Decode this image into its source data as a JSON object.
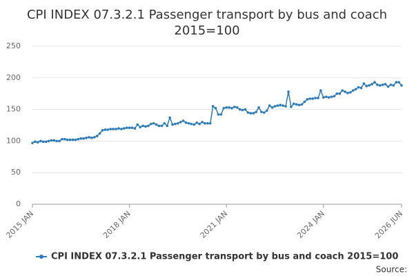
{
  "chart_data": {
    "type": "line",
    "title": "CPI INDEX 07.3.2.1 Passenger transport by bus and coach",
    "subtitle": "2015=100",
    "source": "Source:",
    "categories": [
      "2015 JAN",
      null,
      null,
      null,
      null,
      null,
      null,
      null,
      null,
      null,
      null,
      null,
      null,
      null,
      null,
      null,
      null,
      null,
      null,
      null,
      null,
      null,
      null,
      null,
      null,
      null,
      null,
      null,
      null,
      null,
      null,
      null,
      null,
      null,
      null,
      null,
      "2018 JAN",
      null,
      null,
      null,
      null,
      null,
      null,
      null,
      null,
      null,
      null,
      null,
      null,
      null,
      null,
      null,
      null,
      null,
      null,
      null,
      null,
      null,
      null,
      null,
      null,
      null,
      null,
      null,
      null,
      null,
      null,
      null,
      null,
      null,
      null,
      null,
      "2021 JAN",
      null,
      null,
      null,
      null,
      null,
      null,
      null,
      null,
      null,
      null,
      null,
      null,
      null,
      null,
      null,
      null,
      null,
      null,
      null,
      null,
      null,
      null,
      null,
      null,
      null,
      null,
      null,
      null,
      null,
      null,
      null,
      null,
      null,
      null,
      null,
      "2024 JAN",
      null,
      null,
      null,
      null,
      null,
      null,
      null,
      null,
      null,
      null,
      null,
      null,
      null,
      null,
      null,
      null,
      null,
      null,
      null,
      null,
      null,
      null,
      null,
      null,
      null,
      null,
      null,
      null,
      "2026 JUN"
    ],
    "series": [
      {
        "name": "CPI INDEX 07.3.2.1 Passenger transport by bus and coach 2015=100",
        "color": "#2b7bba",
        "values": [
          97,
          99,
          98,
          100,
          99,
          99,
          100,
          101,
          101,
          100,
          100,
          103,
          103,
          102,
          102,
          102,
          102,
          103,
          104,
          104,
          105,
          106,
          105,
          106,
          108,
          112,
          117,
          118,
          118,
          119,
          119,
          119,
          120,
          119,
          120,
          121,
          121,
          121,
          120,
          126,
          122,
          124,
          123,
          124,
          127,
          128,
          126,
          124,
          124,
          128,
          124,
          137,
          126,
          127,
          128,
          130,
          132,
          129,
          128,
          127,
          126,
          129,
          127,
          130,
          128,
          128,
          128,
          155,
          152,
          142,
          142,
          152,
          153,
          153,
          152,
          154,
          153,
          150,
          149,
          150,
          145,
          144,
          144,
          146,
          153,
          146,
          145,
          148,
          156,
          153,
          155,
          156,
          157,
          156,
          155,
          178,
          154,
          159,
          158,
          157,
          158,
          162,
          166,
          167,
          167,
          168,
          168,
          180,
          169,
          170,
          169,
          170,
          171,
          175,
          175,
          180,
          178,
          176,
          177,
          180,
          182,
          185,
          184,
          191,
          187,
          188,
          190,
          193,
          189,
          188,
          189,
          190,
          186,
          189,
          188,
          193,
          193,
          188
        ]
      }
    ],
    "ylim": [
      0,
      250
    ],
    "yticks": [
      0,
      50,
      100,
      150,
      200,
      250
    ],
    "grid": true
  }
}
